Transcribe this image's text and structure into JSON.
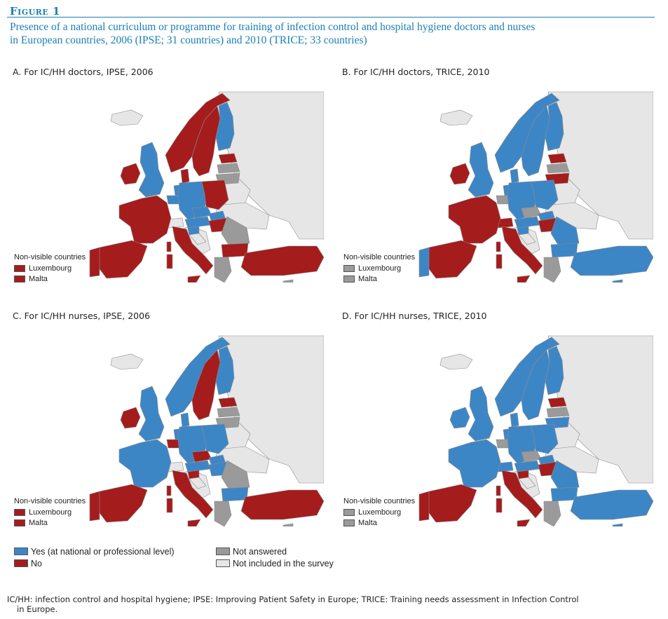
{
  "figure": {
    "label": "Figure 1",
    "caption_line1": "Presence of a national curriculum or programme for training of infection control and hospital hygiene doctors and nurses",
    "caption_line2": "in European countries, 2006 (IPSE; 31 countries) and 2010 (TRICE; 33 countries)"
  },
  "colors": {
    "yes": "#3d86c6",
    "no": "#a51c1c",
    "not_answered": "#9a9a9a",
    "not_included": "#e6e6e6",
    "sea": "#ffffff",
    "border": "#8c8c8c"
  },
  "panels": [
    {
      "title": "A. For IC/HH doctors, IPSE, 2006",
      "non_visible_title": "Non-visible countries",
      "non_visible": [
        {
          "name": "Luxembourg",
          "status": "no"
        },
        {
          "name": "Malta",
          "status": "no"
        }
      ],
      "regions": {
        "iceland": "not_included",
        "ireland": "no",
        "uk": "yes",
        "norway": "no",
        "sweden": "no",
        "finland": "yes",
        "denmark": "no",
        "estonia": "no",
        "latvia": "not_answered",
        "lithuania": "not_answered",
        "netherlands": "yes",
        "belgium": "yes",
        "germany": "yes",
        "poland": "no",
        "france": "no",
        "switzerland": "not_included",
        "czechia": "yes",
        "slovakia": "yes",
        "austria": "yes",
        "hungary": "no",
        "slovenia": "yes",
        "croatia": "not_included",
        "romania": "not_answered",
        "bulgaria": "no",
        "spain": "no",
        "portugal": "no",
        "italy": "no",
        "greece": "not_answered",
        "turkey": "no",
        "balkans": "not_included",
        "russia": "not_included",
        "belarus": "not_included",
        "ukraine": "not_included",
        "cyprus": "not_answered",
        "sardinia": "no",
        "corsica": "no",
        "sicily": "no"
      }
    },
    {
      "title": "B. For IC/HH doctors, TRICE, 2010",
      "non_visible_title": "Non-visible countries",
      "non_visible": [
        {
          "name": "Luxembourg",
          "status": "not_answered"
        },
        {
          "name": "Malta",
          "status": "not_answered"
        }
      ],
      "regions": {
        "iceland": "not_included",
        "ireland": "no",
        "uk": "yes",
        "norway": "yes",
        "sweden": "yes",
        "finland": "yes",
        "denmark": "yes",
        "estonia": "no",
        "latvia": "not_answered",
        "lithuania": "no",
        "netherlands": "yes",
        "belgium": "not_answered",
        "germany": "yes",
        "poland": "yes",
        "france": "no",
        "switzerland": "no",
        "czechia": "not_answered",
        "slovakia": "yes",
        "austria": "yes",
        "hungary": "no",
        "slovenia": "yes",
        "croatia": "not_included",
        "romania": "yes",
        "bulgaria": "yes",
        "spain": "no",
        "portugal": "yes",
        "italy": "no",
        "greece": "not_answered",
        "turkey": "yes",
        "balkans": "not_included",
        "russia": "not_included",
        "belarus": "not_included",
        "ukraine": "not_included",
        "cyprus": "yes",
        "sardinia": "no",
        "corsica": "no",
        "sicily": "no"
      }
    },
    {
      "title": "C. For IC/HH nurses, IPSE, 2006",
      "non_visible_title": "Non-visible countries",
      "non_visible": [
        {
          "name": "Luxembourg",
          "status": "no"
        },
        {
          "name": "Malta",
          "status": "no"
        }
      ],
      "regions": {
        "iceland": "not_included",
        "ireland": "no",
        "uk": "yes",
        "norway": "yes",
        "sweden": "no",
        "finland": "yes",
        "denmark": "yes",
        "estonia": "no",
        "latvia": "not_answered",
        "lithuania": "not_answered",
        "netherlands": "yes",
        "belgium": "no",
        "germany": "yes",
        "poland": "yes",
        "france": "yes",
        "switzerland": "not_included",
        "czechia": "no",
        "slovakia": "yes",
        "austria": "yes",
        "hungary": "yes",
        "slovenia": "no",
        "croatia": "not_included",
        "romania": "not_answered",
        "bulgaria": "yes",
        "spain": "no",
        "portugal": "no",
        "italy": "no",
        "greece": "not_answered",
        "turkey": "no",
        "balkans": "not_included",
        "russia": "not_included",
        "belarus": "not_included",
        "ukraine": "not_included",
        "cyprus": "not_answered",
        "sardinia": "no",
        "corsica": "no",
        "sicily": "no"
      }
    },
    {
      "title": "D. For IC/HH nurses, TRICE, 2010",
      "non_visible_title": "Non-visible countries",
      "non_visible": [
        {
          "name": "Luxembourg",
          "status": "not_answered"
        },
        {
          "name": "Malta",
          "status": "not_answered"
        }
      ],
      "regions": {
        "iceland": "not_included",
        "ireland": "yes",
        "uk": "yes",
        "norway": "yes",
        "sweden": "yes",
        "finland": "yes",
        "denmark": "yes",
        "estonia": "no",
        "latvia": "not_answered",
        "lithuania": "yes",
        "netherlands": "yes",
        "belgium": "not_answered",
        "germany": "yes",
        "poland": "yes",
        "france": "yes",
        "switzerland": "yes",
        "czechia": "not_answered",
        "slovakia": "yes",
        "austria": "yes",
        "hungary": "no",
        "slovenia": "no",
        "croatia": "not_included",
        "romania": "yes",
        "bulgaria": "yes",
        "spain": "no",
        "portugal": "no",
        "italy": "no",
        "greece": "not_answered",
        "turkey": "yes",
        "balkans": "not_included",
        "russia": "not_included",
        "belarus": "not_included",
        "ukraine": "not_included",
        "cyprus": "yes",
        "sardinia": "no",
        "corsica": "no",
        "sicily": "no"
      }
    }
  ],
  "legend": {
    "yes": "Yes (at national or professional level)",
    "no": "No",
    "not_answered": "Not answered",
    "not_included": "Not included in the survey"
  },
  "footnote": {
    "line1": "IC/HH: infection control and hospital hygiene; IPSE: Improving Patient Safety in Europe; TRICE: Training needs assessment in Infection Control",
    "line2": "in Europe."
  }
}
